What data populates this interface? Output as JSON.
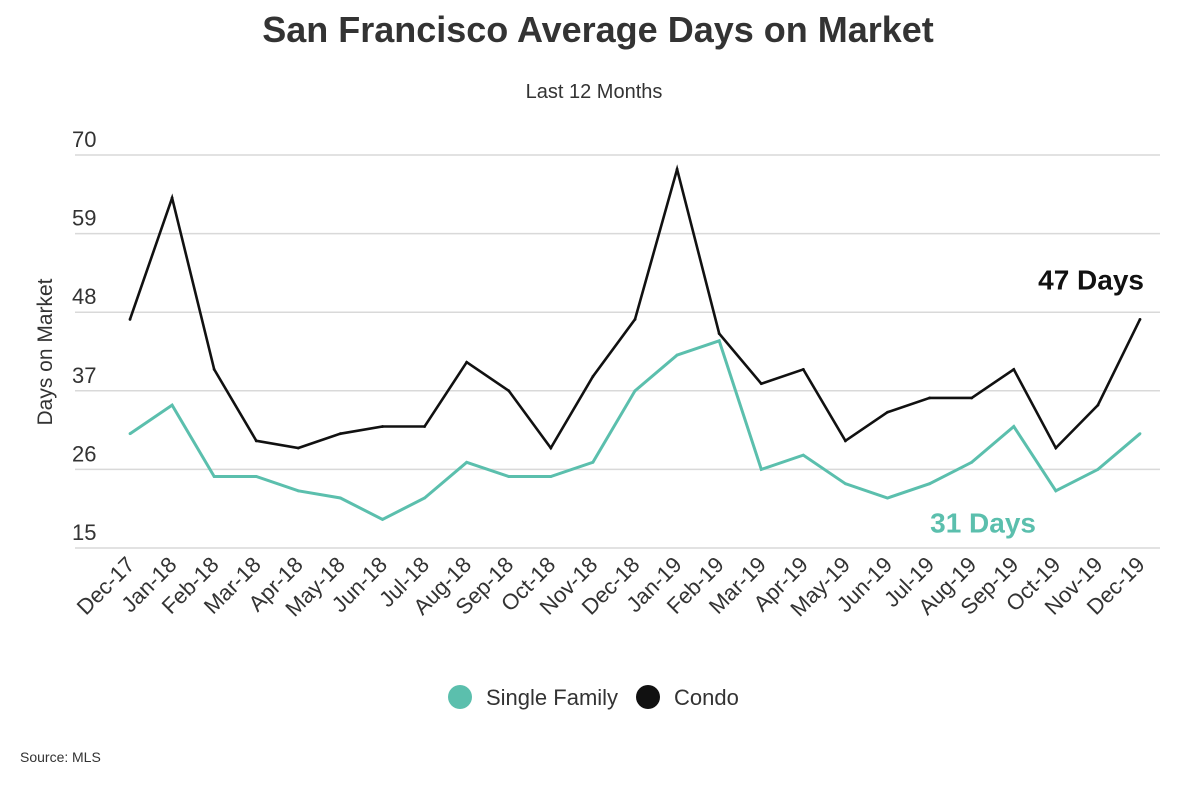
{
  "chart_data": {
    "type": "line",
    "title": "San Francisco Average Days on Market",
    "subtitle": "Last 12 Months",
    "ylabel": "Days on Market",
    "xlabel": "",
    "ylim": [
      15,
      70
    ],
    "yticks": [
      15,
      26,
      37,
      48,
      59,
      70
    ],
    "grid": true,
    "legend_position": "bottom",
    "categories": [
      "Dec-17",
      "Jan-18",
      "Feb-18",
      "Mar-18",
      "Apr-18",
      "May-18",
      "Jun-18",
      "Jul-18",
      "Aug-18",
      "Sep-18",
      "Oct-18",
      "Nov-18",
      "Dec-18",
      "Jan-19",
      "Feb-19",
      "Mar-19",
      "Apr-19",
      "May-19",
      "Jun-19",
      "Jul-19",
      "Aug-19",
      "Sep-19",
      "Oct-19",
      "Nov-19",
      "Dec-19"
    ],
    "series": [
      {
        "name": "Single Family",
        "color": "#5bbfad",
        "values": [
          31,
          35,
          25,
          25,
          23,
          22,
          19,
          22,
          27,
          25,
          25,
          27,
          37,
          42,
          44,
          26,
          28,
          24,
          22,
          24,
          27,
          32,
          23,
          26,
          31
        ]
      },
      {
        "name": "Condo",
        "color": "#111111",
        "values": [
          47,
          64,
          40,
          30,
          29,
          31,
          32,
          32,
          41,
          37,
          29,
          39,
          47,
          68,
          45,
          38,
          40,
          30,
          34,
          36,
          36,
          40,
          29,
          35,
          47
        ]
      }
    ],
    "annotations": [
      {
        "series": "Condo",
        "text": "47 Days",
        "color": "#111111"
      },
      {
        "series": "Single Family",
        "text": "31 Days",
        "color": "#5bbfad"
      }
    ]
  },
  "source": {
    "label": "Source:",
    "value": "MLS"
  }
}
